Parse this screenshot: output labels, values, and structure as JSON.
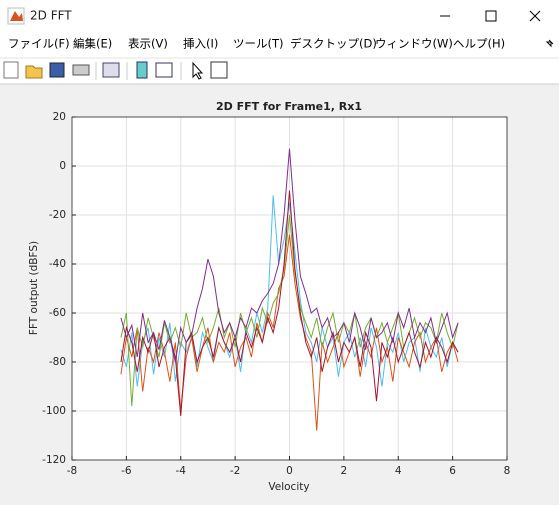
{
  "window": {
    "title": "2D FFT"
  },
  "menu": [
    "ファイル(F)",
    "編集(E)",
    "表示(V)",
    "挿入(I)",
    "ツール(T)",
    "デスクトップ(D)",
    "ウィンドウ(W)",
    "ヘルプ(H)"
  ],
  "chart_data": {
    "type": "line",
    "title": "2D FFT for Frame1, Rx1",
    "x_label": "Velocity",
    "y_label": "FFT output (dBFS)",
    "x": [
      -6.2,
      -6,
      -5.8,
      -5.6,
      -5.4,
      -5.2,
      -5,
      -4.8,
      -4.6,
      -4.4,
      -4.2,
      -4,
      -3.8,
      -3.6,
      -3.4,
      -3.2,
      -3,
      -2.8,
      -2.6,
      -2.4,
      -2.2,
      -2,
      -1.8,
      -1.6,
      -1.4,
      -1.2,
      -1,
      -0.8,
      -0.6,
      -0.4,
      -0.2,
      0,
      0.2,
      0.4,
      0.6,
      0.8,
      1,
      1.2,
      1.4,
      1.6,
      1.8,
      2,
      2.2,
      2.4,
      2.6,
      2.8,
      3,
      3.2,
      3.4,
      3.6,
      3.8,
      4,
      4.2,
      4.4,
      4.6,
      4.8,
      5,
      5.2,
      5.4,
      5.6,
      5.8,
      6,
      6.2
    ],
    "series": [
      {
        "color": "#4DBEEE",
        "values": [
          -75,
          -82,
          -68,
          -90,
          -72,
          -66,
          -85,
          -70,
          -78,
          -64,
          -88,
          -72,
          -76,
          -70,
          -82,
          -68,
          -74,
          -80,
          -66,
          -72,
          -78,
          -70,
          -84,
          -66,
          -72,
          -60,
          -68,
          -58,
          -12,
          -40,
          -30,
          -15,
          -35,
          -55,
          -68,
          -72,
          -80,
          -66,
          -74,
          -70,
          -86,
          -72,
          -68,
          -78,
          -70,
          -82,
          -66,
          -74,
          -90,
          -72,
          -76,
          -68,
          -80,
          -72,
          -70,
          -84,
          -66,
          -74,
          -78,
          -70,
          -82,
          -72,
          -76
        ]
      },
      {
        "color": "#D95319",
        "values": [
          -85,
          -70,
          -78,
          -66,
          -92,
          -74,
          -80,
          -68,
          -76,
          -88,
          -72,
          -100,
          -78,
          -70,
          -84,
          -74,
          -66,
          -80,
          -72,
          -76,
          -68,
          -82,
          -74,
          -70,
          -78,
          -64,
          -72,
          -60,
          -66,
          -50,
          -45,
          -28,
          -48,
          -62,
          -70,
          -76,
          -108,
          -72,
          -80,
          -74,
          -68,
          -82,
          -76,
          -70,
          -86,
          -72,
          -78,
          -66,
          -80,
          -74,
          -88,
          -70,
          -76,
          -82,
          -72,
          -68,
          -80,
          -74,
          -70,
          -84,
          -76,
          -72,
          -80
        ]
      },
      {
        "color": "#77AC30",
        "values": [
          -70,
          -60,
          -98,
          -66,
          -74,
          -62,
          -70,
          -78,
          -64,
          -72,
          -66,
          -74,
          -60,
          -70,
          -68,
          -62,
          -72,
          -66,
          -58,
          -70,
          -64,
          -74,
          -60,
          -68,
          -62,
          -70,
          -58,
          -64,
          -56,
          -52,
          -42,
          -20,
          -44,
          -58,
          -64,
          -70,
          -62,
          -74,
          -66,
          -60,
          -72,
          -64,
          -68,
          -60,
          -74,
          -66,
          -62,
          -70,
          -64,
          -72,
          -66,
          -60,
          -74,
          -68,
          -62,
          -70,
          -64,
          -66,
          -72,
          -60,
          -68,
          -74,
          -64
        ]
      },
      {
        "color": "#A2142F",
        "values": [
          -80,
          -66,
          -72,
          -84,
          -70,
          -76,
          -68,
          -82,
          -74,
          -70,
          -78,
          -102,
          -72,
          -68,
          -80,
          -74,
          -70,
          -78,
          -66,
          -72,
          -76,
          -70,
          -80,
          -68,
          -74,
          -66,
          -72,
          -62,
          -68,
          -58,
          -40,
          -10,
          -42,
          -60,
          -72,
          -78,
          -70,
          -84,
          -74,
          -68,
          -80,
          -72,
          -76,
          -70,
          -82,
          -68,
          -74,
          -96,
          -72,
          -78,
          -70,
          -80,
          -74,
          -68,
          -76,
          -82,
          -72,
          -78,
          -70,
          -74,
          -80,
          -72,
          -76
        ]
      },
      {
        "color": "#7E2F8E",
        "values": [
          -62,
          -70,
          -65,
          -78,
          -60,
          -72,
          -68,
          -75,
          -63,
          -70,
          -80,
          -66,
          -72,
          -69,
          -58,
          -50,
          -38,
          -45,
          -60,
          -68,
          -64,
          -70,
          -62,
          -66,
          -58,
          -60,
          -55,
          -52,
          -48,
          -40,
          -20,
          7,
          -22,
          -45,
          -52,
          -60,
          -58,
          -66,
          -62,
          -70,
          -68,
          -64,
          -72,
          -60,
          -66,
          -75,
          -62,
          -70,
          -68,
          -64,
          -72,
          -60,
          -66,
          -58,
          -70,
          -64,
          -68,
          -62,
          -72,
          -66,
          -60,
          -70,
          -64
        ]
      }
    ],
    "xlim": [
      -8,
      8
    ],
    "xticks": [
      -8,
      -6,
      -4,
      -2,
      0,
      2,
      4,
      6,
      8
    ],
    "ylim": [
      -120,
      20
    ],
    "yticks": [
      -120,
      -100,
      -80,
      -60,
      -40,
      -20,
      0,
      20
    ],
    "grid": true
  }
}
